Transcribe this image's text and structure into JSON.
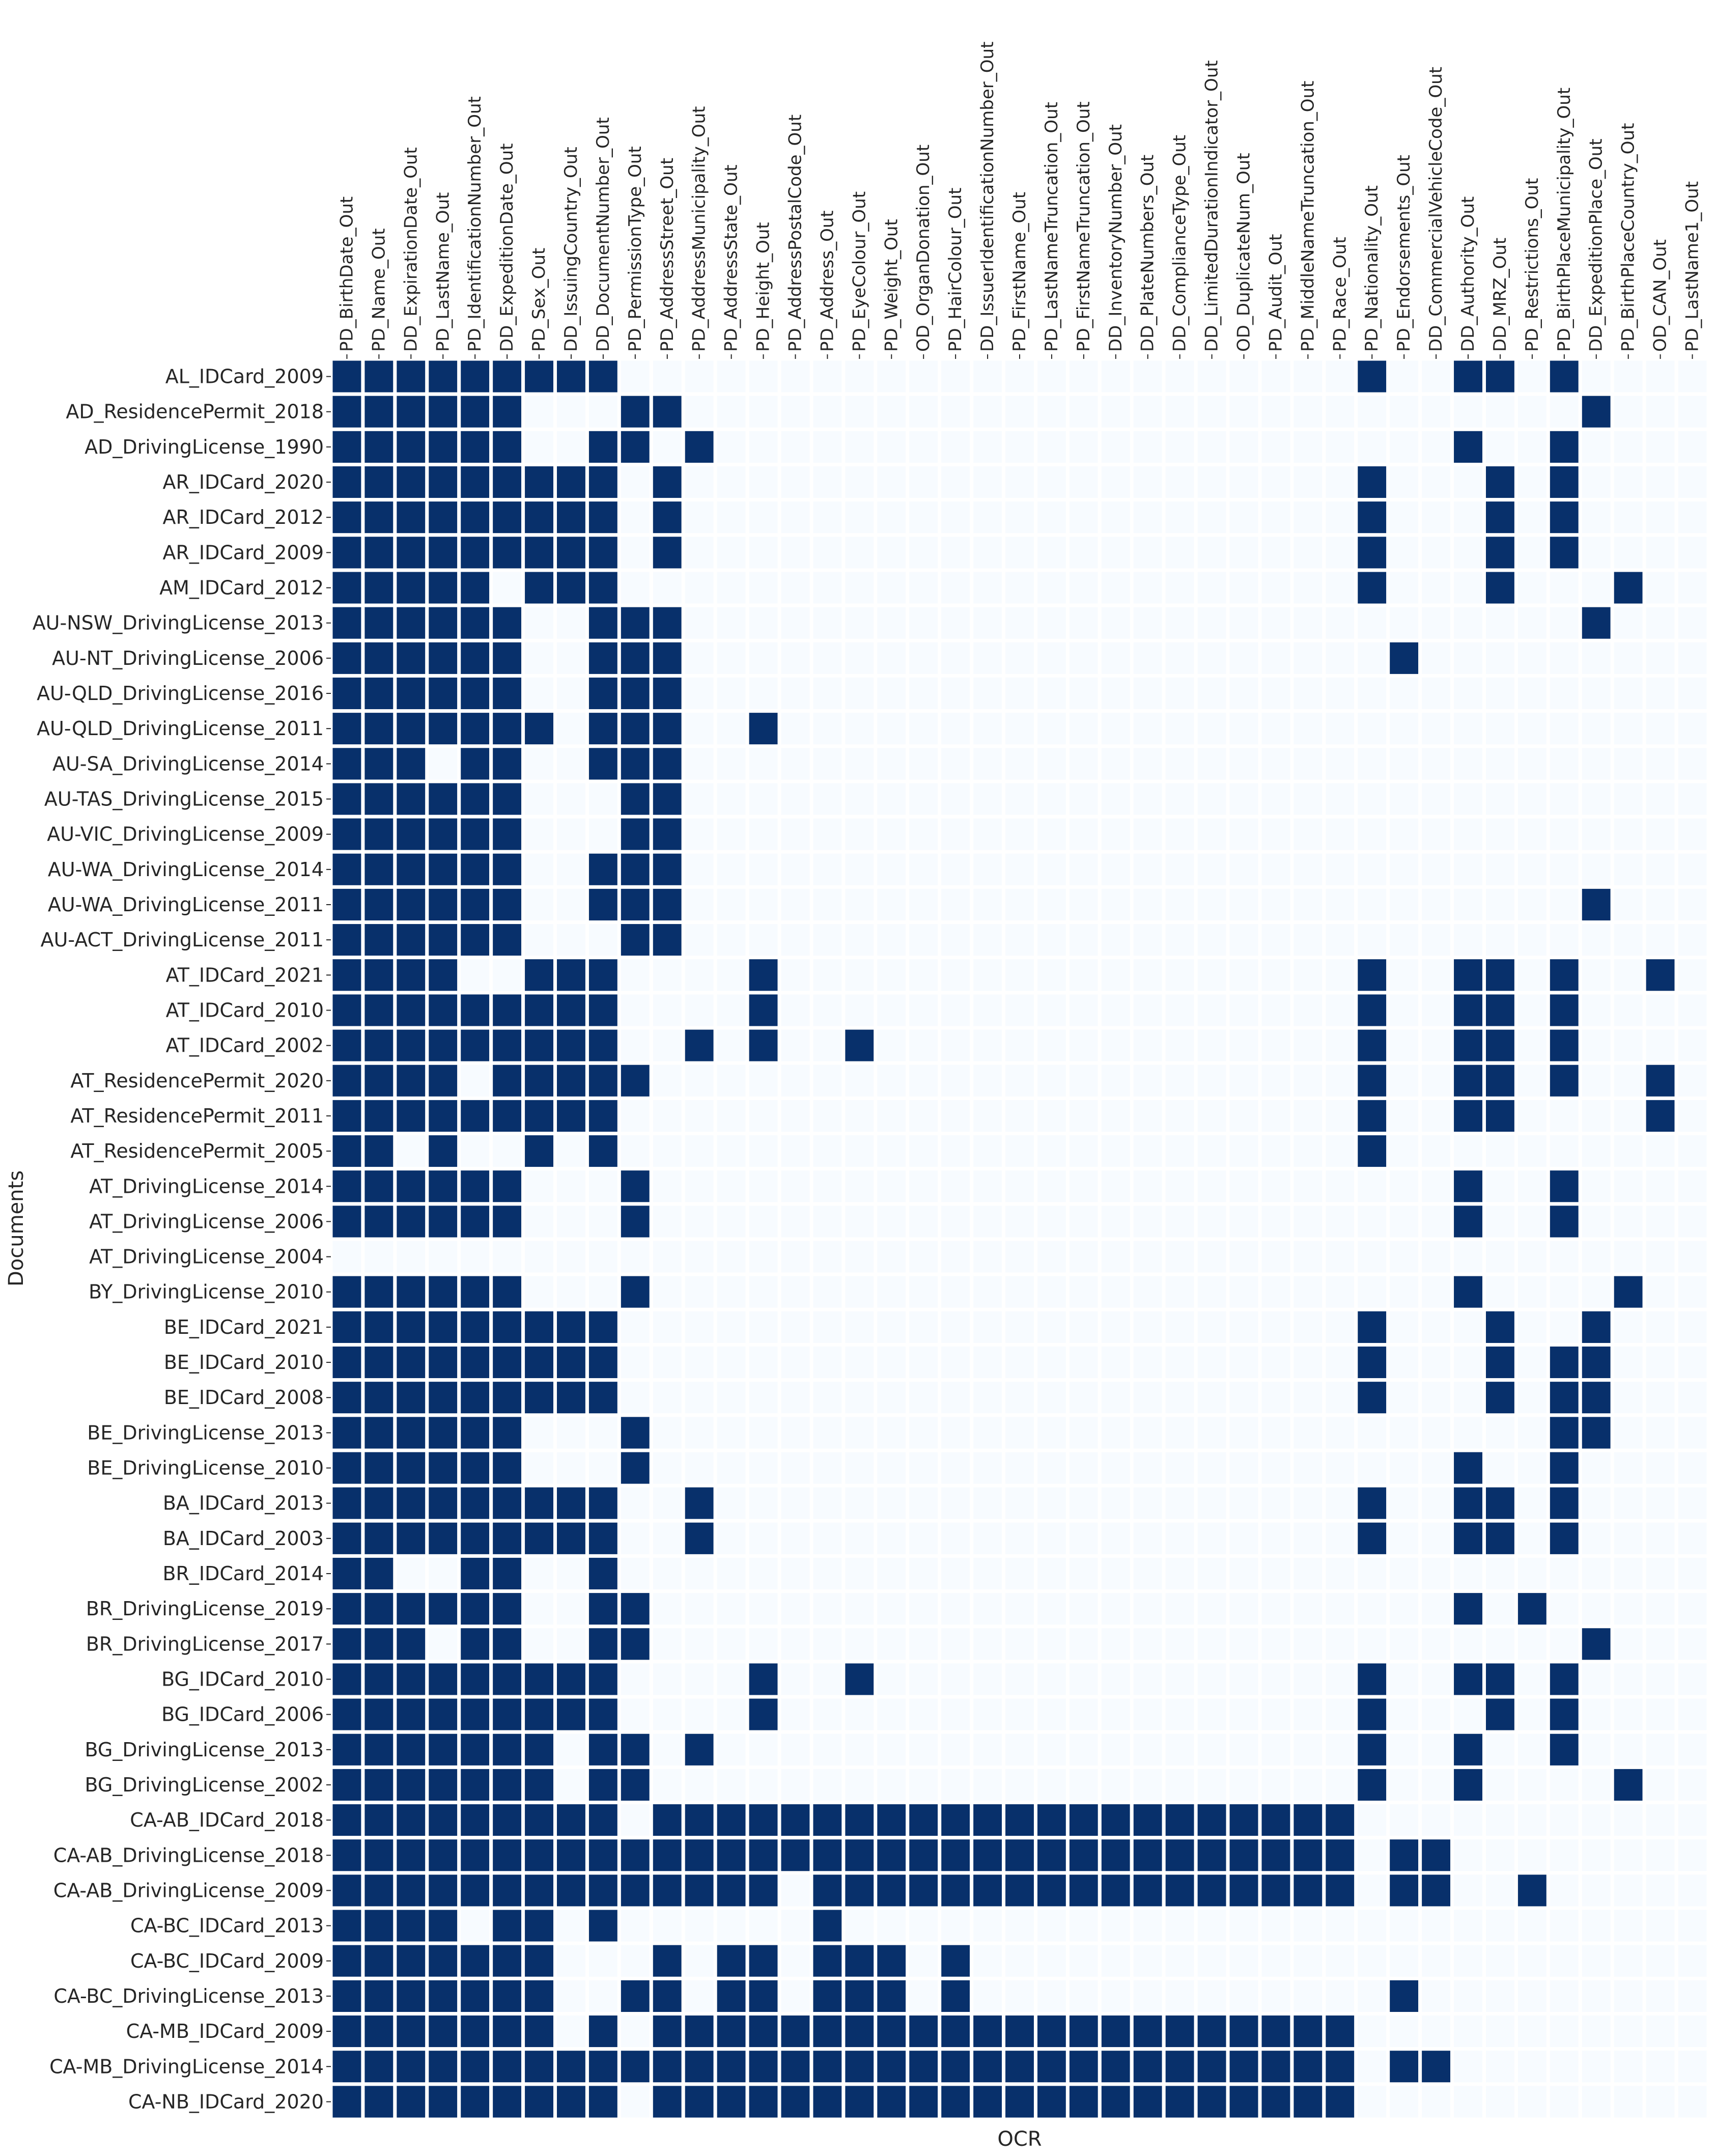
{
  "chart_data": {
    "type": "heatmap",
    "xlabel": "OCR",
    "ylabel": "Documents",
    "colors": {
      "present": "#08306b",
      "absent": "#f7fbff",
      "cell_border": "#ffffff"
    },
    "columns": [
      "PD_BirthDate_Out",
      "PD_Name_Out",
      "DD_ExpirationDate_Out",
      "PD_LastName_Out",
      "PD_IdentificationNumber_Out",
      "DD_ExpeditionDate_Out",
      "PD_Sex_Out",
      "DD_IssuingCountry_Out",
      "DD_DocumentNumber_Out",
      "PD_PermissionType_Out",
      "PD_AddressStreet_Out",
      "PD_AddressMunicipality_Out",
      "PD_AddressState_Out",
      "PD_Height_Out",
      "PD_AddressPostalCode_Out",
      "PD_Address_Out",
      "PD_EyeColour_Out",
      "PD_Weight_Out",
      "OD_OrganDonation_Out",
      "PD_HairColour_Out",
      "DD_IssuerIdentificationNumber_Out",
      "PD_FirstName_Out",
      "PD_LastNameTruncation_Out",
      "PD_FirstNameTruncation_Out",
      "DD_InventoryNumber_Out",
      "DD_PlateNumbers_Out",
      "DD_ComplianceType_Out",
      "DD_LimitedDurationIndicator_Out",
      "OD_DuplicateNum_Out",
      "PD_Audit_Out",
      "PD_MiddleNameTruncation_Out",
      "PD_Race_Out",
      "PD_Nationality_Out",
      "PD_Endorsements_Out",
      "DD_CommercialVehicleCode_Out",
      "DD_Authority_Out",
      "DD_MRZ_Out",
      "PD_Restrictions_Out",
      "PD_BirthPlaceMunicipality_Out",
      "DD_ExpeditionPlace_Out",
      "PD_BirthPlaceCountry_Out",
      "OD_CAN_Out",
      "PD_LastName1_Out"
    ],
    "rows": [
      {
        "label": "AL_IDCard_2009",
        "values": "1111111110000000000000000000000010011010000"
      },
      {
        "label": "AD_ResidencePermit_2018",
        "values": "1111110001100000000000000000000000000001000"
      },
      {
        "label": "AD_DrivingLicense_1990",
        "values": "1111110011010000000000000000000000010010000"
      },
      {
        "label": "AR_IDCard_2020",
        "values": "1111111110100000000000000000000010001010000"
      },
      {
        "label": "AR_IDCard_2012",
        "values": "1111111110100000000000000000000010001010000"
      },
      {
        "label": "AR_IDCard_2009",
        "values": "1111111110100000000000000000000010001010000"
      },
      {
        "label": "AM_IDCard_2012",
        "values": "1111101110000000000000000000000010001000100"
      },
      {
        "label": "AU-NSW_DrivingLicense_2013",
        "values": "1111110011100000000000000000000000000001000"
      },
      {
        "label": "AU-NT_DrivingLicense_2006",
        "values": "1111110011100000000000000000000001000000000"
      },
      {
        "label": "AU-QLD_DrivingLicense_2016",
        "values": "1111110011100000000000000000000000000000000"
      },
      {
        "label": "AU-QLD_DrivingLicense_2011",
        "values": "1111111011100100000000000000000000000000000"
      },
      {
        "label": "AU-SA_DrivingLicense_2014",
        "values": "1110110011100000000000000000000000000000000"
      },
      {
        "label": "AU-TAS_DrivingLicense_2015",
        "values": "1111110001100000000000000000000000000000000"
      },
      {
        "label": "AU-VIC_DrivingLicense_2009",
        "values": "1111110001100000000000000000000000000000000"
      },
      {
        "label": "AU-WA_DrivingLicense_2014",
        "values": "1111110011100000000000000000000000000000000"
      },
      {
        "label": "AU-WA_DrivingLicense_2011",
        "values": "1111110011100000000000000000000000000001000"
      },
      {
        "label": "AU-ACT_DrivingLicense_2011",
        "values": "1111110001100000000000000000000000000000000"
      },
      {
        "label": "AT_IDCard_2021",
        "values": "1111001110000100000000000000000010011010010"
      },
      {
        "label": "AT_IDCard_2010",
        "values": "1111111110000100000000000000000010011010000"
      },
      {
        "label": "AT_IDCard_2002",
        "values": "1111111110010100100000000000000010011010000"
      },
      {
        "label": "AT_ResidencePermit_2020",
        "values": "1111011111000000000000000000000010011010010"
      },
      {
        "label": "AT_ResidencePermit_2011",
        "values": "1111111110000000000000000000000010011000010"
      },
      {
        "label": "AT_ResidencePermit_2005",
        "values": "1101001010000000000000000000000010000000000"
      },
      {
        "label": "AT_DrivingLicense_2014",
        "values": "1111110001000000000000000000000000010010000"
      },
      {
        "label": "AT_DrivingLicense_2006",
        "values": "1111110001000000000000000000000000010010000"
      },
      {
        "label": "AT_DrivingLicense_2004",
        "values": "0000000000000000000000000000000000000000000"
      },
      {
        "label": "BY_DrivingLicense_2010",
        "values": "1111110001000000000000000000000000010000100"
      },
      {
        "label": "BE_IDCard_2021",
        "values": "1111111110000000000000000000000010001001000"
      },
      {
        "label": "BE_IDCard_2010",
        "values": "1111111110000000000000000000000010001011000"
      },
      {
        "label": "BE_IDCard_2008",
        "values": "1111111110000000000000000000000010001011000"
      },
      {
        "label": "BE_DrivingLicense_2013",
        "values": "1111110001000000000000000000000000000011000"
      },
      {
        "label": "BE_DrivingLicense_2010",
        "values": "1111110001000000000000000000000000010010000"
      },
      {
        "label": "BA_IDCard_2013",
        "values": "1111111110010000000000000000000010011010000"
      },
      {
        "label": "BA_IDCard_2003",
        "values": "1111111110010000000000000000000010011010000"
      },
      {
        "label": "BR_IDCard_2014",
        "values": "1100110010000000000000000000000000000000000"
      },
      {
        "label": "BR_DrivingLicense_2019",
        "values": "1111110011000000000000000000000000010100000"
      },
      {
        "label": "BR_DrivingLicense_2017",
        "values": "1110110011000000000000000000000000000001000"
      },
      {
        "label": "BG_IDCard_2010",
        "values": "1111111110000100100000000000000010011010000"
      },
      {
        "label": "BG_IDCard_2006",
        "values": "1111111110000100000000000000000010001010000"
      },
      {
        "label": "BG_DrivingLicense_2013",
        "values": "1111111011010000000000000000000010010010000"
      },
      {
        "label": "BG_DrivingLicense_2002",
        "values": "1111111011000000000000000000000010010000100"
      },
      {
        "label": "CA-AB_IDCard_2018",
        "values": "1111111110111111111111111111111100000000000"
      },
      {
        "label": "CA-AB_DrivingLicense_2018",
        "values": "1111111111111111111111111111111101100000000"
      },
      {
        "label": "CA-AB_DrivingLicense_2009",
        "values": "1111111111111101111111111111111101100100000"
      },
      {
        "label": "CA-BC_IDCard_2013",
        "values": "1111011010000001000000000000000000000000000"
      },
      {
        "label": "CA-BC_IDCard_2009",
        "values": "1111111000101101110100000000000000000000000"
      },
      {
        "label": "CA-BC_DrivingLicense_2013",
        "values": "1111111001101101110100000000000001000000000"
      },
      {
        "label": "CA-MB_IDCard_2009",
        "values": "1111111010111111111111111111111100000000000"
      },
      {
        "label": "CA-MB_DrivingLicense_2014",
        "values": "1111111111111111111111111111111101100000000"
      },
      {
        "label": "CA-NB_IDCard_2020",
        "values": "1111111110111111111111111111111100000000000"
      }
    ]
  }
}
